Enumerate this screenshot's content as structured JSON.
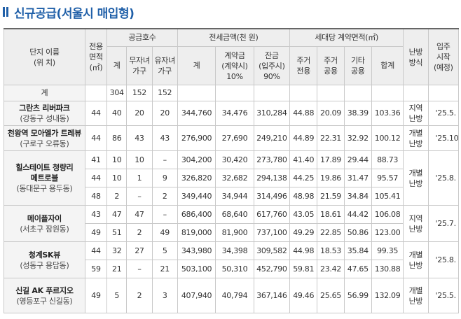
{
  "title": "신규공급(서울시 매입형)",
  "header": {
    "complex_name": "단지 이름",
    "complex_location": "(위 치)",
    "area_l1": "전용",
    "area_l2": "면적",
    "area_l3": "(㎡)",
    "supply_units": "공급호수",
    "supply_total": "계",
    "childless_l1": "무자녀",
    "childless_l2": "가구",
    "with_child_l1": "유자녀",
    "with_child_l2": "가구",
    "deposit": "전세금액(천 원)",
    "deposit_total": "계",
    "contract_l1": "계약금",
    "contract_l2": "(계약시)",
    "contract_l3": "10%",
    "balance_l1": "잔금",
    "balance_l2": "(입주시)",
    "balance_l3": "90%",
    "contract_area": "세대당 계약면적(㎡)",
    "dedicated_l1": "주거",
    "dedicated_l2": "전용",
    "common_l1": "주거",
    "common_l2": "공용",
    "other_l1": "기타",
    "other_l2": "공용",
    "sum": "합계",
    "heating_l1": "난방",
    "heating_l2": "방식",
    "movein_l1": "입주",
    "movein_l2": "시작",
    "movein_l3": "(예정)"
  },
  "total": {
    "label": "계",
    "units": "304",
    "childless": "152",
    "with_child": "152"
  },
  "complexes": [
    {
      "name": "그란츠 리버파크",
      "location": "(강동구 성내동)",
      "heating_l1": "지역",
      "heating_l2": "난방",
      "move_in": "'25.5.",
      "rows": [
        {
          "area": "44",
          "units": "40",
          "childless": "20",
          "with_child": "20",
          "deposit": "344,760",
          "contract": "34,476",
          "balance": "310,284",
          "dedicated": "44.88",
          "common": "20.09",
          "other": "38.39",
          "sum": "103.36"
        }
      ]
    },
    {
      "name": "천왕역 모아엘가 트레뷰",
      "location": "(구로구 오류동)",
      "heating_l1": "개별",
      "heating_l2": "난방",
      "move_in": "'25.10.",
      "rows": [
        {
          "area": "44",
          "units": "86",
          "childless": "43",
          "with_child": "43",
          "deposit": "276,900",
          "contract": "27,690",
          "balance": "249,210",
          "dedicated": "44.89",
          "common": "22.31",
          "other": "32.92",
          "sum": "100.12"
        }
      ]
    },
    {
      "name_l1": "힐스테이트 청량리",
      "name_l2": "메트로블",
      "location": "(동대문구 용두동)",
      "heating_l1": "개별",
      "heating_l2": "난방",
      "move_in": "'25.8.",
      "rows": [
        {
          "area": "41",
          "units": "10",
          "childless": "10",
          "with_child": "–",
          "deposit": "304,200",
          "contract": "30,420",
          "balance": "273,780",
          "dedicated": "41.40",
          "common": "17.89",
          "other": "29.44",
          "sum": "88.73"
        },
        {
          "area": "44",
          "units": "10",
          "childless": "1",
          "with_child": "9",
          "deposit": "326,820",
          "contract": "32,682",
          "balance": "294,138",
          "dedicated": "44.25",
          "common": "19.86",
          "other": "31.47",
          "sum": "95.57"
        },
        {
          "area": "48",
          "units": "2",
          "childless": "–",
          "with_child": "2",
          "deposit": "349,440",
          "contract": "34,944",
          "balance": "314,496",
          "dedicated": "48.98",
          "common": "21.59",
          "other": "34.84",
          "sum": "105.41"
        }
      ]
    },
    {
      "name": "메이플자이",
      "location": "(서초구 잠원동)",
      "heating_l1": "지역",
      "heating_l2": "난방",
      "move_in": "'25.7.",
      "rows": [
        {
          "area": "43",
          "units": "47",
          "childless": "47",
          "with_child": "–",
          "deposit": "686,400",
          "contract": "68,640",
          "balance": "617,760",
          "dedicated": "43.05",
          "common": "18.61",
          "other": "44.42",
          "sum": "106.08"
        },
        {
          "area": "49",
          "units": "51",
          "childless": "2",
          "with_child": "49",
          "deposit": "819,000",
          "contract": "81,900",
          "balance": "737,100",
          "dedicated": "49.29",
          "common": "22.85",
          "other": "50.86",
          "sum": "123.00"
        }
      ]
    },
    {
      "name": "청계SK뷰",
      "location": "(성동구 용답동)",
      "heating_l1": "개별",
      "heating_l2": "난방",
      "move_in": "'25.8.",
      "rows": [
        {
          "area": "44",
          "units": "32",
          "childless": "27",
          "with_child": "5",
          "deposit": "343,980",
          "contract": "34,398",
          "balance": "309,582",
          "dedicated": "44.98",
          "common": "18.53",
          "other": "35.84",
          "sum": "99.35"
        },
        {
          "area": "59",
          "units": "21",
          "childless": "–",
          "with_child": "21",
          "deposit": "503,100",
          "contract": "50,310",
          "balance": "452,790",
          "dedicated": "59.81",
          "common": "23.42",
          "other": "47.65",
          "sum": "130.88"
        }
      ]
    },
    {
      "name": "신길 AK 푸르지오",
      "location": "(영등포구 신길동)",
      "heating_l1": "개별",
      "heating_l2": "난방",
      "move_in": "'25.5.",
      "rows": [
        {
          "area": "49",
          "units": "5",
          "childless": "2",
          "with_child": "3",
          "deposit": "407,940",
          "contract": "40,794",
          "balance": "367,146",
          "dedicated": "49.46",
          "common": "25.65",
          "other": "56.99",
          "sum": "132.09"
        }
      ]
    }
  ]
}
